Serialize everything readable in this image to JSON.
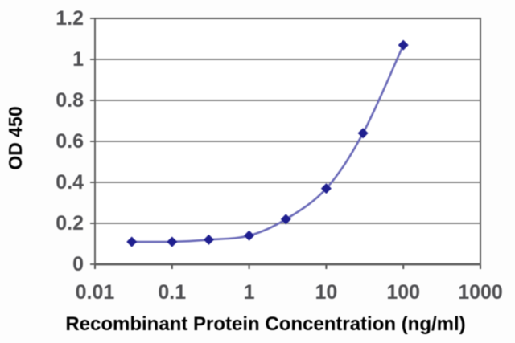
{
  "chart_data": {
    "type": "line",
    "subtype": "smoothed-line-with-markers",
    "title": "",
    "xlabel": "Recombinant Protein Concentration (ng/ml)",
    "ylabel": "OD 450",
    "x_scale": "log",
    "x": [
      0.03,
      0.1,
      0.3,
      1,
      3,
      10,
      30,
      100
    ],
    "y": [
      0.11,
      0.11,
      0.12,
      0.14,
      0.22,
      0.37,
      0.64,
      1.07
    ],
    "xlim": [
      0.01,
      1000
    ],
    "ylim": [
      0,
      1.2
    ],
    "x_ticks": [
      0.01,
      0.1,
      1,
      10,
      100,
      1000
    ],
    "x_tick_labels": [
      "0.01",
      "0.1",
      "1",
      "10",
      "100",
      "1000"
    ],
    "y_ticks": [
      0,
      0.2,
      0.4,
      0.6,
      0.8,
      1,
      1.2
    ],
    "y_tick_labels": [
      "0",
      "0.2",
      "0.4",
      "0.6",
      "0.8",
      "1",
      "1.2"
    ],
    "grid": "horizontal",
    "legend": "none",
    "marker": "diamond",
    "colors": {
      "line": "#6a6ab8",
      "marker": "#1f1f8f",
      "grid": "#7b7b7b",
      "border": "#5f5f5f",
      "axis": "#4f4f4f",
      "text": "#4f4f52",
      "plot_background": "#ffffff"
    }
  }
}
